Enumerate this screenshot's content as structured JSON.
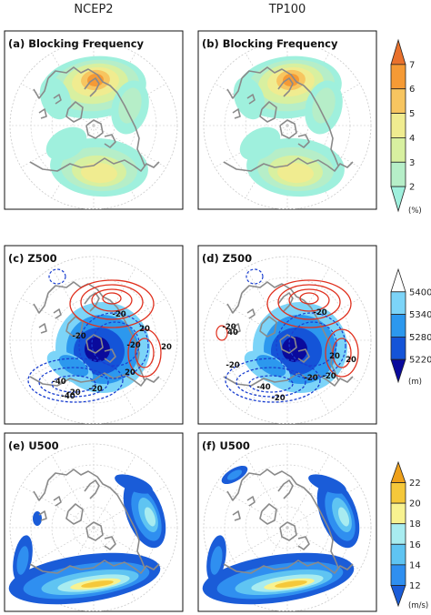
{
  "columns": [
    "NCEP2",
    "TP100"
  ],
  "chart_data": [
    {
      "type": "heatmap",
      "title": "(a) Blocking Frequency",
      "variable": "Blocking Frequency",
      "column": "NCEP2",
      "projection": "north polar stereographic",
      "colorbar": {
        "levels": [
          2,
          3,
          4,
          5,
          6,
          7
        ],
        "unit": "(%)",
        "colors": [
          "#9ff0dd",
          "#b6eec8",
          "#d8f0a0",
          "#f0ec90",
          "#f7c560",
          "#f59a35",
          "#e9712c"
        ]
      },
      "blobs": [
        {
          "region": "Atlantic-Europe",
          "peak": 7
        },
        {
          "region": "North Pacific",
          "peak": 5
        }
      ]
    },
    {
      "type": "heatmap",
      "title": "(b) Blocking Frequency",
      "variable": "Blocking Frequency",
      "column": "TP100",
      "projection": "north polar stereographic",
      "blobs": [
        {
          "region": "Atlantic-Europe",
          "peak": 7
        },
        {
          "region": "North Pacific",
          "peak": 5
        }
      ]
    },
    {
      "type": "heatmap",
      "title": "(c) Z500",
      "variable": "Z500",
      "column": "NCEP2",
      "projection": "north polar stereographic",
      "colorbar": {
        "levels": [
          5220,
          5280,
          5340,
          5400
        ],
        "unit": "(m)",
        "colors": [
          "#0a0a9c",
          "#1454d8",
          "#2c98ee",
          "#7cd4f8",
          "#ffffff"
        ]
      },
      "contour_labels": [
        "-20",
        "-20",
        "20",
        "20",
        "-20",
        "-40",
        "-40",
        "-20",
        "-20",
        "20"
      ]
    },
    {
      "type": "heatmap",
      "title": "(d) Z500",
      "variable": "Z500",
      "column": "TP100",
      "projection": "north polar stereographic",
      "contour_labels": [
        "-20",
        "40",
        "-20",
        "20",
        "20",
        "-20",
        "-20",
        "-20",
        "-40",
        "-20"
      ]
    },
    {
      "type": "heatmap",
      "title": "(e) U500",
      "variable": "U500",
      "column": "NCEP2",
      "projection": "north polar stereographic",
      "colorbar": {
        "levels": [
          12,
          14,
          16,
          18,
          20,
          22
        ],
        "unit": "(m/s)",
        "colors": [
          "#1a5cd8",
          "#2f8ff0",
          "#5fc4f2",
          "#a8ecf0",
          "#f8f290",
          "#f5c83a",
          "#eea01a"
        ]
      }
    },
    {
      "type": "heatmap",
      "title": "(f) U500",
      "variable": "U500",
      "column": "TP100",
      "projection": "north polar stereographic"
    }
  ]
}
